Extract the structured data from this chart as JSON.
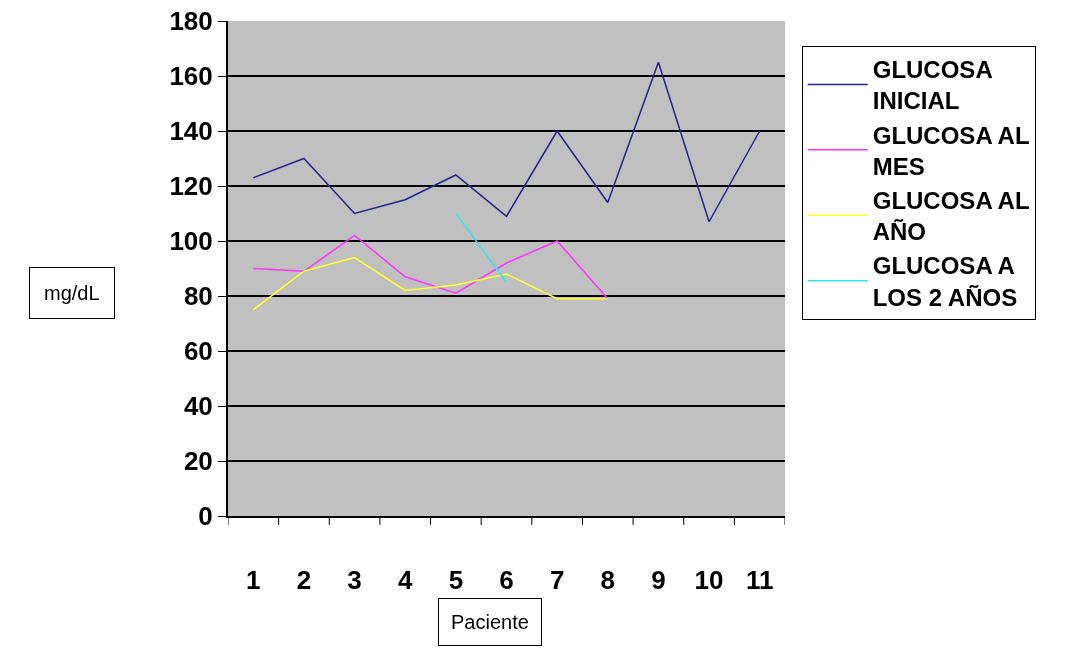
{
  "chart_data": {
    "type": "line",
    "xlabel": "Paciente",
    "ylabel": "mg/dL",
    "categories": [
      "1",
      "2",
      "3",
      "4",
      "5",
      "6",
      "7",
      "8",
      "9",
      "10",
      "11"
    ],
    "series": [
      {
        "name": "GLUCOSA INICIAL",
        "color": "#24248c",
        "values": [
          123,
          130,
          110,
          115,
          124,
          109,
          140,
          114,
          165,
          107,
          140
        ]
      },
      {
        "name": "GLUCOSA AL MES",
        "color": "#ff33ff",
        "values": [
          90,
          89,
          102,
          87,
          81,
          92,
          100,
          79,
          null,
          null,
          null
        ]
      },
      {
        "name": "GLUCOSA AL AÑO",
        "color": "#ffff33",
        "values": [
          75,
          89,
          94,
          82,
          84,
          88,
          79,
          79,
          null,
          null,
          null
        ]
      },
      {
        "name": "GLUCOSA A LOS 2 AÑOS",
        "color": "#33e6e6",
        "values": [
          null,
          null,
          null,
          null,
          110,
          85,
          null,
          null,
          null,
          null,
          null
        ]
      }
    ],
    "ylim": [
      0,
      180
    ],
    "yticks": [
      0,
      20,
      40,
      60,
      80,
      100,
      120,
      140,
      160,
      180
    ],
    "grid": "y",
    "legend": "right",
    "marker": "none",
    "line_style": "solid"
  }
}
